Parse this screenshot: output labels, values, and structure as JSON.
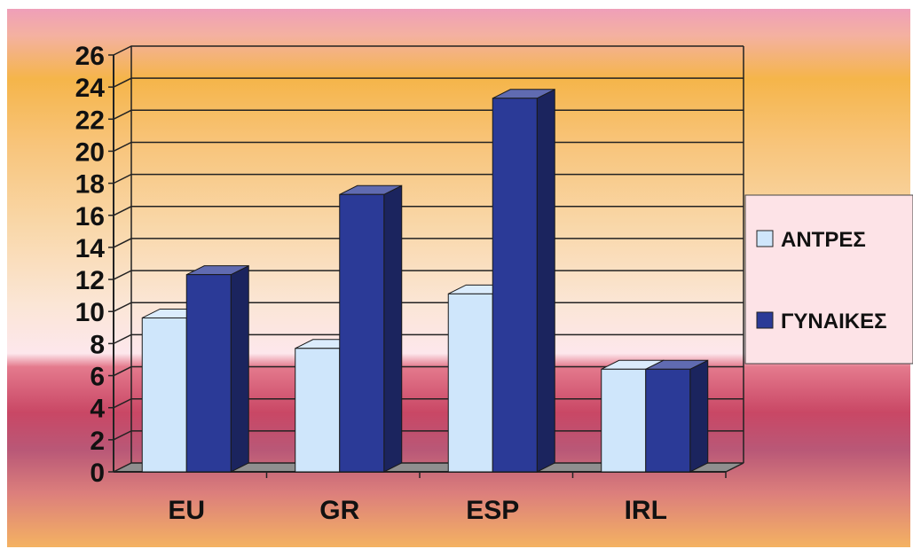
{
  "chart_data": {
    "type": "bar",
    "style": "3d-clustered-column",
    "categories": [
      "EU",
      "GR",
      "ESP",
      "IRL"
    ],
    "series": [
      {
        "name": "ΑΝΤΡΕΣ",
        "values": [
          9.6,
          7.7,
          11.1,
          6.4
        ],
        "color": "#cfe6fb"
      },
      {
        "name": "ΓΥΝΑΙΚΕΣ",
        "values": [
          12.3,
          17.3,
          23.3,
          6.4
        ],
        "color": "#2b3a97"
      }
    ],
    "ylim": [
      0,
      26
    ],
    "yticks": [
      "0",
      "2",
      "4",
      "6",
      "8",
      "10",
      "12",
      "14",
      "16",
      "18",
      "20",
      "22",
      "24",
      "26"
    ],
    "grid": true,
    "legend": "right",
    "title": "",
    "xlabel": "",
    "ylabel": ""
  }
}
